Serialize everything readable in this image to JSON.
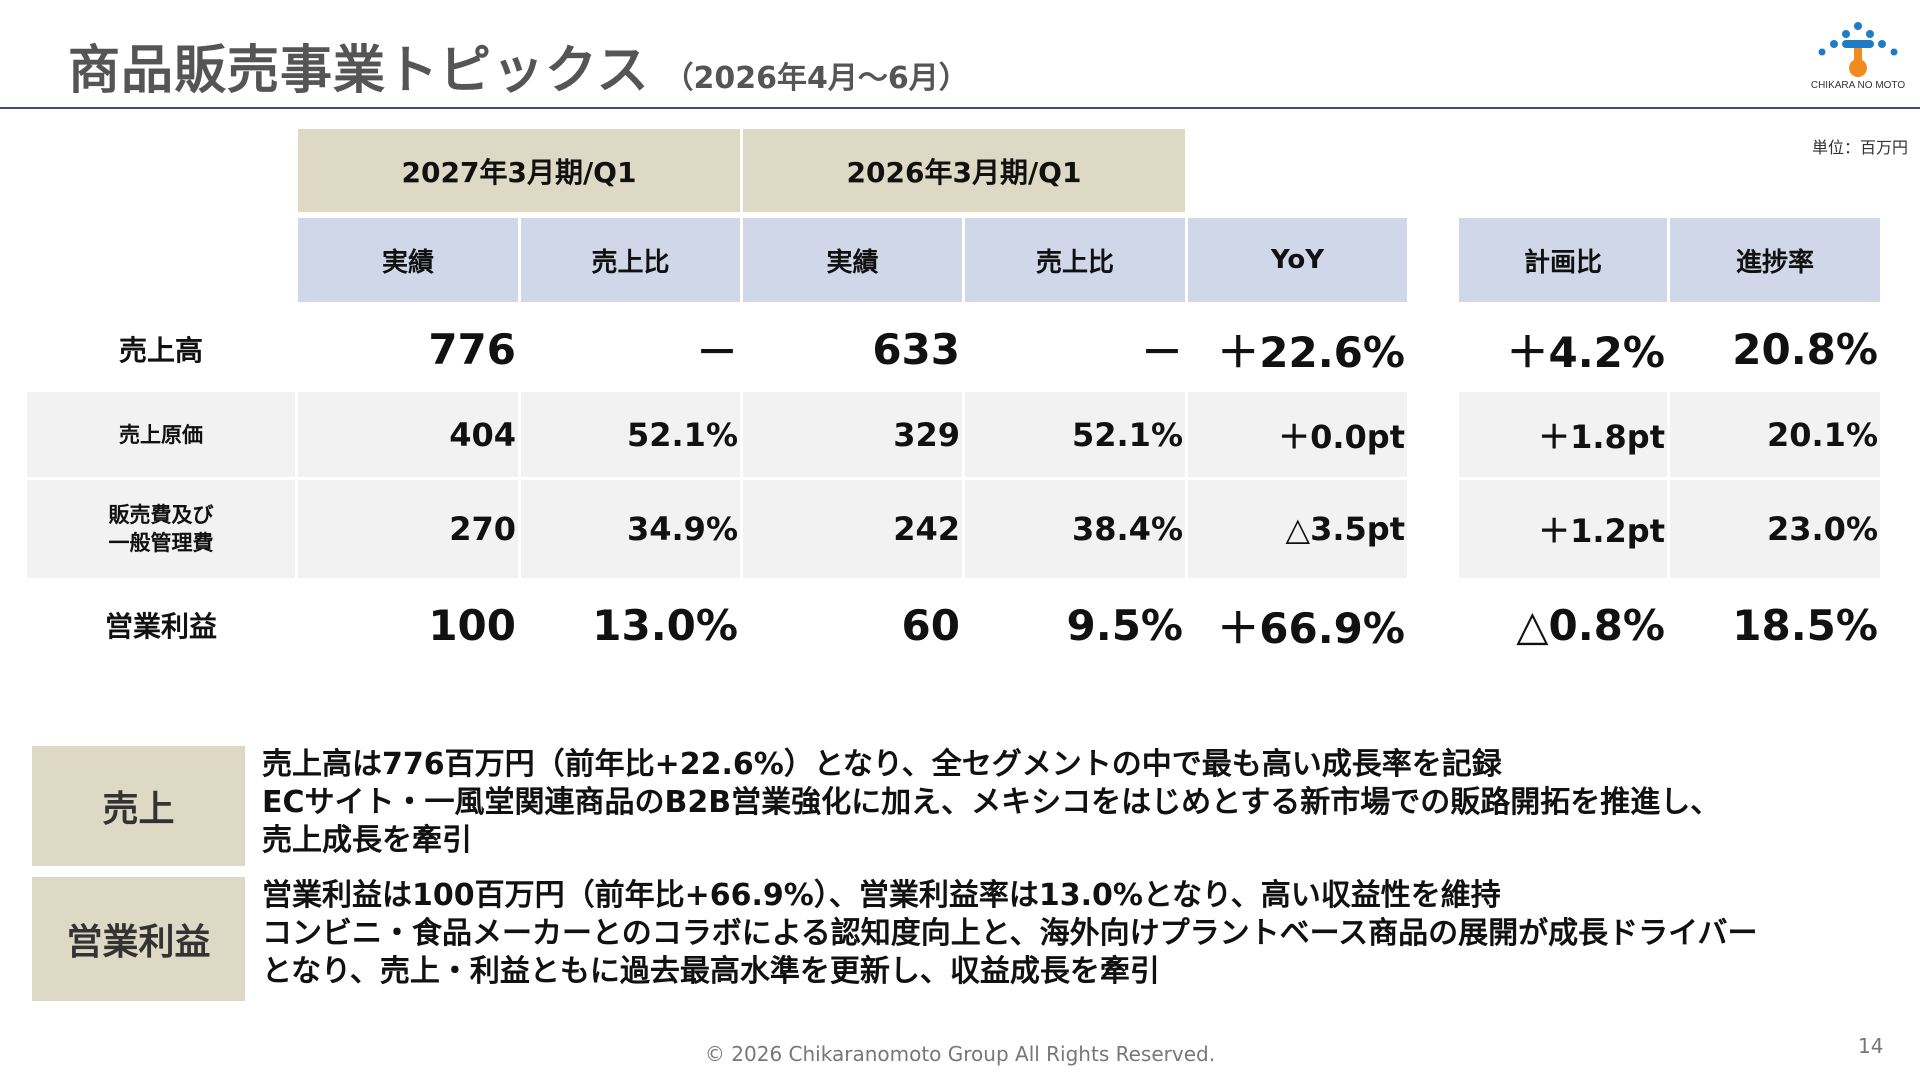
{
  "header": {
    "title": "商品販売事業トピックス",
    "subtitle": "（2026年4月～6月）",
    "logo_text": "CHIKARA NO MOTO",
    "unit": "単位：百万円"
  },
  "table": {
    "periods": [
      "2027年3月期/Q1",
      "2026年3月期/Q1"
    ],
    "col_headers": [
      "実績",
      "売上比",
      "実績",
      "売上比",
      "YoY",
      "計画比",
      "進捗率"
    ],
    "rows": [
      {
        "label": "売上高",
        "cells": [
          "776",
          "－",
          "633",
          "－",
          "＋22.6%",
          "＋4.2%",
          "20.8%"
        ]
      },
      {
        "label": "売上原価",
        "cells": [
          "404",
          "52.1%",
          "329",
          "52.1%",
          "＋0.0pt",
          "＋1.8pt",
          "20.1%"
        ]
      },
      {
        "label_line1": "販売費及び",
        "label_line2": "一般管理費",
        "cells": [
          "270",
          "34.9%",
          "242",
          "38.4%",
          "△3.5pt",
          "＋1.2pt",
          "23.0%"
        ]
      },
      {
        "label": "営業利益",
        "cells": [
          "100",
          "13.0%",
          "60",
          "9.5%",
          "＋66.9%",
          "△0.8%",
          "18.5%"
        ]
      }
    ]
  },
  "summary": [
    {
      "label": "売上",
      "lines": [
        "売上高は776百万円（前年比+22.6%）となり、全セグメントの中で最も高い成長率を記録",
        "ECサイト・一風堂関連商品のB2B営業強化に加え、メキシコをはじめとする新市場での販路開拓を推進し、",
        "売上成長を牽引"
      ]
    },
    {
      "label": "営業利益",
      "lines": [
        "営業利益は100百万円（前年比+66.9%）、営業利益率は13.0%となり、高い収益性を維持",
        "コンビニ・食品メーカーとのコラボによる認知度向上と、海外向けプラントベース商品の展開が成長ドライバー",
        "となり、売上・利益ともに過去最高水準を更新し、収益成長を牽引"
      ]
    }
  ],
  "footer": {
    "copyright": "© 2026 Chikaranomoto Group All Rights Reserved.",
    "page": "14"
  },
  "colors": {
    "period_bg": "#ddd9c4",
    "header_bg": "#cfd7e8",
    "shade_bg": "#f2f2f2",
    "rule": "#3b4a7a",
    "logo_blue": "#1f7bc6",
    "logo_orange": "#f08c1e"
  }
}
